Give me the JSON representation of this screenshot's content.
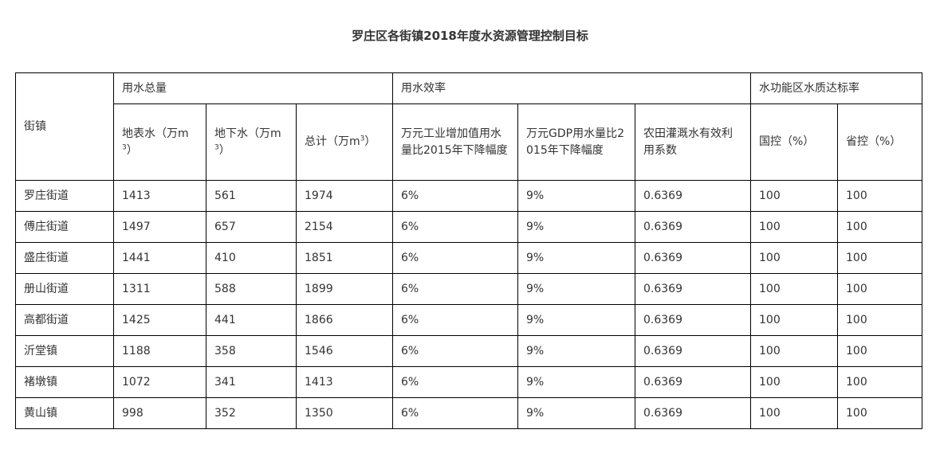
{
  "title": "罗庄区各街镇2018年度水资源管理控制目标",
  "header": {
    "town": "街镇",
    "group_total": "用水总量",
    "group_efficiency": "用水效率",
    "group_quality": "水功能区水质达标率",
    "surface_prefix": "地表水（万m",
    "ground_prefix": "地下水（万m",
    "total_prefix": "总计（万m",
    "unit_sup": "3",
    "unit_suffix": "）",
    "industry": "万元工业增加值用水量比2015年下降幅度",
    "gdp": "万元GDP用水量比2015年下降幅度",
    "irrigation": "农田灌溉水有效利用系数",
    "national": "国控（%）",
    "provincial": "省控（%）"
  },
  "rows": [
    {
      "town": "罗庄街道",
      "surface": "1413",
      "ground": "561",
      "total": "1974",
      "industry": "6%",
      "gdp": "9%",
      "irrigation": "0.6369",
      "national": "100",
      "provincial": "100"
    },
    {
      "town": "傅庄街道",
      "surface": "1497",
      "ground": "657",
      "total": "2154",
      "industry": "6%",
      "gdp": "9%",
      "irrigation": "0.6369",
      "national": "100",
      "provincial": "100"
    },
    {
      "town": "盛庄街道",
      "surface": "1441",
      "ground": "410",
      "total": "1851",
      "industry": "6%",
      "gdp": "9%",
      "irrigation": "0.6369",
      "national": "100",
      "provincial": "100"
    },
    {
      "town": "册山街道",
      "surface": "1311",
      "ground": "588",
      "total": "1899",
      "industry": "6%",
      "gdp": "9%",
      "irrigation": "0.6369",
      "national": "100",
      "provincial": "100"
    },
    {
      "town": "高都街道",
      "surface": "1425",
      "ground": "441",
      "total": "1866",
      "industry": "6%",
      "gdp": "9%",
      "irrigation": "0.6369",
      "national": "100",
      "provincial": "100"
    },
    {
      "town": "沂堂镇",
      "surface": "1188",
      "ground": "358",
      "total": "1546",
      "industry": "6%",
      "gdp": "9%",
      "irrigation": "0.6369",
      "national": "100",
      "provincial": "100"
    },
    {
      "town": "褚墩镇",
      "surface": "1072",
      "ground": "341",
      "total": "1413",
      "industry": "6%",
      "gdp": "9%",
      "irrigation": "0.6369",
      "national": "100",
      "provincial": "100"
    },
    {
      "town": "黄山镇",
      "surface": "998",
      "ground": "352",
      "total": "1350",
      "industry": "6%",
      "gdp": "9%",
      "irrigation": "0.6369",
      "national": "100",
      "provincial": "100"
    }
  ]
}
